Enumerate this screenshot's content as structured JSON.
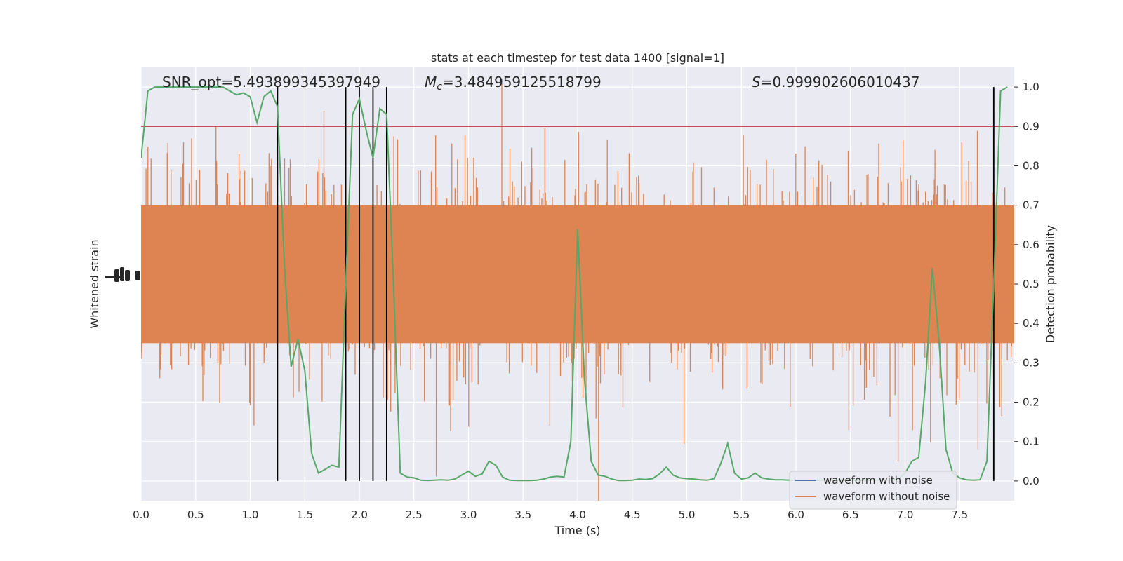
{
  "chart_data": {
    "type": "line",
    "title": "stats at each timestep for test data 1400 [signal=1]",
    "xlabel": "Time (s)",
    "ylabel_left": "Whitened strain",
    "ylabel_right": "Detection probability",
    "xlim": [
      0.0,
      8.0
    ],
    "ylim_right": [
      -0.05,
      1.05
    ],
    "x_ticks": [
      "0.0",
      "0.5",
      "1.0",
      "1.5",
      "2.0",
      "2.5",
      "3.0",
      "3.5",
      "4.0",
      "4.5",
      "5.0",
      "5.5",
      "6.0",
      "6.5",
      "7.0",
      "7.5"
    ],
    "y_ticks_right": [
      "0.0",
      "0.1",
      "0.2",
      "0.3",
      "0.4",
      "0.5",
      "0.6",
      "0.7",
      "0.8",
      "0.9",
      "1.0"
    ],
    "grid": true,
    "legend_placement": "lower-right",
    "annotations": {
      "snr": "SNR_opt=5.493899345397949",
      "mc_symbol": "M",
      "mc_sub": "c",
      "mc_value": "=3.484959125518799",
      "s_symbol": "S",
      "s_value": "=0.999902606010437"
    },
    "threshold": {
      "y": 0.9,
      "color": "#c44e52"
    },
    "vertical_markers_x": [
      1.25,
      1.875,
      2.0,
      2.125,
      2.25,
      7.8125
    ],
    "series": [
      {
        "name": "waveform with noise",
        "color": "#4c72b0"
      },
      {
        "name": "waveform without noise",
        "color": "#dd8452"
      },
      {
        "color": "#55a868",
        "x": [
          0.0,
          0.0625,
          0.125,
          0.1875,
          0.25,
          0.3125,
          0.375,
          0.4375,
          0.5,
          0.5625,
          0.625,
          0.6875,
          0.75,
          0.8125,
          0.875,
          0.9375,
          1.0,
          1.0625,
          1.125,
          1.1875,
          1.25,
          1.3125,
          1.375,
          1.4375,
          1.5,
          1.5625,
          1.625,
          1.6875,
          1.75,
          1.8125,
          1.875,
          1.9375,
          2.0,
          2.0625,
          2.125,
          2.1875,
          2.25,
          2.3125,
          2.375,
          2.4375,
          2.5,
          2.5625,
          2.625,
          2.6875,
          2.75,
          2.8125,
          2.875,
          2.9375,
          3.0,
          3.0625,
          3.125,
          3.1875,
          3.25,
          3.3125,
          3.375,
          3.4375,
          3.5,
          3.5625,
          3.625,
          3.6875,
          3.75,
          3.8125,
          3.875,
          3.9375,
          4.0,
          4.0625,
          4.125,
          4.1875,
          4.25,
          4.3125,
          4.375,
          4.4375,
          4.5,
          4.5625,
          4.625,
          4.6875,
          4.75,
          4.8125,
          4.875,
          4.9375,
          5.0,
          5.0625,
          5.125,
          5.1875,
          5.25,
          5.3125,
          5.375,
          5.4375,
          5.5,
          5.5625,
          5.625,
          5.6875,
          5.75,
          5.8125,
          5.875,
          5.9375,
          6.0,
          6.0625,
          6.125,
          6.1875,
          6.25,
          6.3125,
          6.375,
          6.4375,
          6.5,
          6.5625,
          6.625,
          6.6875,
          6.75,
          6.8125,
          6.875,
          6.9375,
          7.0,
          7.0625,
          7.125,
          7.1875,
          7.25,
          7.3125,
          7.375,
          7.4375,
          7.5,
          7.5625,
          7.625,
          7.6875,
          7.75,
          7.8125,
          7.875,
          7.9375
        ],
        "values": [
          0.82,
          0.99,
          1.0,
          1.0,
          1.0,
          1.0,
          1.0,
          1.0,
          1.0,
          1.0,
          1.0,
          1.0,
          1.0,
          0.99,
          0.98,
          0.985,
          0.975,
          0.91,
          0.975,
          0.99,
          0.95,
          0.55,
          0.29,
          0.36,
          0.28,
          0.07,
          0.02,
          0.03,
          0.04,
          0.035,
          0.5,
          0.93,
          0.97,
          0.89,
          0.82,
          0.945,
          0.93,
          0.5,
          0.02,
          0.01,
          0.008,
          0.002,
          0.001,
          0.002,
          0.003,
          0.002,
          0.005,
          0.015,
          0.025,
          0.012,
          0.018,
          0.05,
          0.04,
          0.01,
          0.002,
          0.001,
          0.001,
          0.001,
          0.002,
          0.005,
          0.01,
          0.012,
          0.01,
          0.1,
          0.64,
          0.26,
          0.05,
          0.015,
          0.012,
          0.005,
          0.001,
          0.001,
          0.002,
          0.005,
          0.004,
          0.006,
          0.018,
          0.035,
          0.015,
          0.008,
          0.006,
          0.005,
          0.003,
          0.002,
          0.006,
          0.045,
          0.095,
          0.02,
          0.005,
          0.008,
          0.02,
          0.008,
          0.005,
          0.003,
          0.003,
          0.002,
          0.002,
          0.002,
          0.002,
          0.002,
          0.002,
          0.002,
          0.002,
          0.002,
          0.002,
          0.002,
          0.002,
          0.002,
          0.002,
          0.002,
          0.002,
          0.005,
          0.02,
          0.05,
          0.06,
          0.25,
          0.54,
          0.35,
          0.08,
          0.02,
          0.008,
          0.003,
          0.002,
          0.003,
          0.05,
          0.5,
          0.99,
          1.0
        ]
      }
    ]
  }
}
